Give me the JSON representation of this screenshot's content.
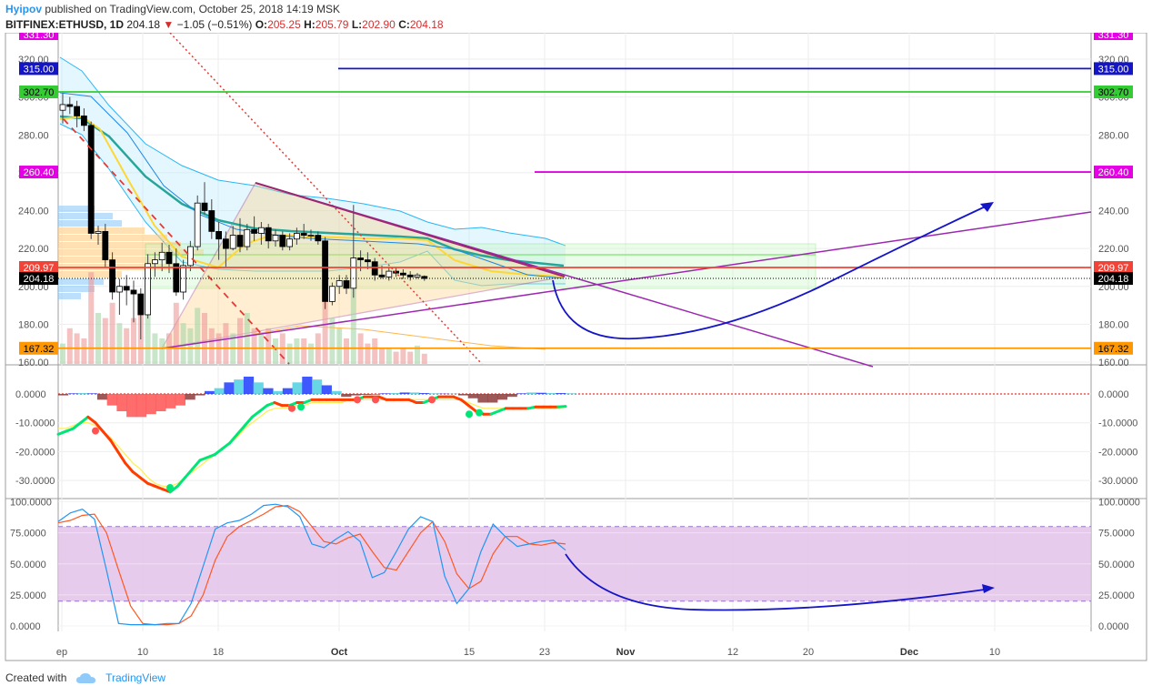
{
  "header": {
    "author": "Hyipov",
    "published_text": "published on TradingView.com, October 25, 2018 14:19 MSK",
    "symbol": "BITFINEX:ETHUSD, 1D",
    "last": "204.18",
    "change": "−1.05 (−0.51%)",
    "open_label": "O:",
    "open": "205.25",
    "high_label": "H:",
    "high": "205.79",
    "low_label": "L:",
    "low": "202.90",
    "close_label": "C:",
    "close": "204.18"
  },
  "footer": {
    "created_with": "Created with",
    "brand": "TradingView"
  },
  "colors": {
    "up": "#ffffff",
    "down": "#000000",
    "accent": "#2196f3",
    "level_blue": "#1515c8",
    "level_green": "#33cc33",
    "level_red": "#f44336",
    "level_magenta": "#e600e6",
    "level_orange": "#ff9800",
    "purple": "#9c27b0",
    "stoch_band": "#e1bee7"
  },
  "chart_data": [
    {
      "type": "candlestick",
      "title": "",
      "x_ticks": [
        "ep",
        "10",
        "18",
        "Oct",
        "15",
        "23",
        "Nov",
        "12",
        "20",
        "Dec",
        "10"
      ],
      "y_ticks": [
        "160.00",
        "180.00",
        "200.00",
        "220.00",
        "240.00",
        "260.00",
        "280.00",
        "300.00",
        "320.00"
      ],
      "ylim": [
        160,
        330
      ],
      "candles": [
        {
          "o": 293,
          "h": 302,
          "l": 286,
          "c": 296
        },
        {
          "o": 296,
          "h": 300,
          "l": 291,
          "c": 295
        },
        {
          "o": 295,
          "h": 298,
          "l": 284,
          "c": 290
        },
        {
          "o": 290,
          "h": 294,
          "l": 282,
          "c": 285
        },
        {
          "o": 285,
          "h": 287,
          "l": 225,
          "c": 228
        },
        {
          "o": 228,
          "h": 232,
          "l": 222,
          "c": 229
        },
        {
          "o": 229,
          "h": 233,
          "l": 210,
          "c": 214
        },
        {
          "o": 214,
          "h": 218,
          "l": 193,
          "c": 197
        },
        {
          "o": 197,
          "h": 204,
          "l": 185,
          "c": 200
        },
        {
          "o": 200,
          "h": 206,
          "l": 190,
          "c": 198
        },
        {
          "o": 198,
          "h": 203,
          "l": 181,
          "c": 196
        },
        {
          "o": 196,
          "h": 199,
          "l": 172,
          "c": 185
        },
        {
          "o": 185,
          "h": 217,
          "l": 183,
          "c": 212
        },
        {
          "o": 212,
          "h": 218,
          "l": 205,
          "c": 214
        },
        {
          "o": 214,
          "h": 223,
          "l": 208,
          "c": 218
        },
        {
          "o": 218,
          "h": 222,
          "l": 207,
          "c": 212
        },
        {
          "o": 212,
          "h": 220,
          "l": 195,
          "c": 197
        },
        {
          "o": 197,
          "h": 214,
          "l": 193,
          "c": 211
        },
        {
          "o": 211,
          "h": 224,
          "l": 208,
          "c": 221
        },
        {
          "o": 221,
          "h": 248,
          "l": 219,
          "c": 244
        },
        {
          "o": 244,
          "h": 255,
          "l": 238,
          "c": 240
        },
        {
          "o": 240,
          "h": 246,
          "l": 225,
          "c": 229
        },
        {
          "o": 229,
          "h": 234,
          "l": 214,
          "c": 225
        },
        {
          "o": 225,
          "h": 229,
          "l": 210,
          "c": 220
        },
        {
          "o": 220,
          "h": 232,
          "l": 219,
          "c": 227
        },
        {
          "o": 227,
          "h": 236,
          "l": 218,
          "c": 221
        },
        {
          "o": 221,
          "h": 233,
          "l": 219,
          "c": 230
        },
        {
          "o": 230,
          "h": 237,
          "l": 224,
          "c": 228
        },
        {
          "o": 228,
          "h": 234,
          "l": 222,
          "c": 231
        },
        {
          "o": 231,
          "h": 233,
          "l": 220,
          "c": 224
        },
        {
          "o": 224,
          "h": 230,
          "l": 221,
          "c": 227
        },
        {
          "o": 227,
          "h": 229,
          "l": 219,
          "c": 221
        },
        {
          "o": 221,
          "h": 228,
          "l": 219,
          "c": 225
        },
        {
          "o": 225,
          "h": 231,
          "l": 222,
          "c": 228
        },
        {
          "o": 228,
          "h": 233,
          "l": 225,
          "c": 227
        },
        {
          "o": 227,
          "h": 230,
          "l": 224,
          "c": 227
        },
        {
          "o": 227,
          "h": 229,
          "l": 222,
          "c": 224
        },
        {
          "o": 224,
          "h": 226,
          "l": 188,
          "c": 192
        },
        {
          "o": 192,
          "h": 202,
          "l": 190,
          "c": 200
        },
        {
          "o": 200,
          "h": 206,
          "l": 196,
          "c": 203
        },
        {
          "o": 203,
          "h": 206,
          "l": 196,
          "c": 199
        },
        {
          "o": 199,
          "h": 243,
          "l": 194,
          "c": 215
        },
        {
          "o": 215,
          "h": 219,
          "l": 208,
          "c": 214
        },
        {
          "o": 214,
          "h": 218,
          "l": 209,
          "c": 213
        },
        {
          "o": 213,
          "h": 215,
          "l": 203,
          "c": 206
        },
        {
          "o": 206,
          "h": 211,
          "l": 204,
          "c": 205
        },
        {
          "o": 205,
          "h": 210,
          "l": 203,
          "c": 208
        },
        {
          "o": 208,
          "h": 210,
          "l": 205,
          "c": 207
        },
        {
          "o": 207,
          "h": 209,
          "l": 204,
          "c": 206
        },
        {
          "o": 206,
          "h": 208,
          "l": 203,
          "c": 205
        },
        {
          "o": 205,
          "h": 207,
          "l": 204,
          "c": 206
        },
        {
          "o": 205.25,
          "h": 205.79,
          "l": 202.9,
          "c": 204.18
        }
      ],
      "volume_rel": [
        0.2,
        0.35,
        0.3,
        0.25,
        0.9,
        0.5,
        0.45,
        0.6,
        0.4,
        0.35,
        0.45,
        0.5,
        0.7,
        0.3,
        0.25,
        0.3,
        0.6,
        0.4,
        0.35,
        0.55,
        0.5,
        0.35,
        0.3,
        0.4,
        0.3,
        0.45,
        0.5,
        0.35,
        0.3,
        0.35,
        0.25,
        0.3,
        0.2,
        0.25,
        0.25,
        0.2,
        0.3,
        0.8,
        0.45,
        0.35,
        0.25,
        1.0,
        0.3,
        0.2,
        0.25,
        0.15,
        0.15,
        0.12,
        0.15,
        0.12,
        0.18,
        0.1
      ],
      "levels": [
        {
          "value": 315.0,
          "label": "315.00",
          "color": "#1515c8"
        },
        {
          "value": 302.7,
          "label": "302.70",
          "color": "#33cc33"
        },
        {
          "value": 260.4,
          "label": "260.40",
          "color": "#e600e6"
        },
        {
          "value": 209.97,
          "label": "209.97",
          "color": "#f44336"
        },
        {
          "value": 204.18,
          "label": "204.18",
          "color": "#000000"
        },
        {
          "value": 167.32,
          "label": "167.32",
          "color": "#ff9800"
        }
      ],
      "partial_labels": [
        "331.30"
      ]
    },
    {
      "type": "line",
      "title": "",
      "y_ticks": [
        "0.0000",
        "-10.0000",
        "-20.0000",
        "-30.0000"
      ],
      "ylim": [
        -35,
        5
      ],
      "fast": [
        -14,
        -13,
        -12,
        -10,
        -8,
        -10,
        -13,
        -16,
        -20,
        -24,
        -27,
        -29,
        -31,
        -32,
        -33,
        -34,
        -32,
        -29,
        -26,
        -23,
        -22,
        -21,
        -19,
        -17,
        -14,
        -11,
        -8,
        -6,
        -4,
        -3,
        -4,
        -4,
        -3,
        -3,
        -2,
        -2,
        -2,
        -2,
        -2,
        -2,
        -2,
        -1,
        -1,
        -1,
        -2,
        -2,
        -2,
        -2,
        -3,
        -3,
        -2,
        -1,
        -1,
        -1,
        -2,
        -4,
        -6,
        -7,
        -7,
        -6,
        -5,
        -5,
        -5,
        -5,
        -4.5,
        -4.5,
        -4.5,
        -4.5,
        -4.3
      ],
      "slow": [
        -12,
        -12,
        -11,
        -10,
        -10,
        -11,
        -13,
        -15,
        -18,
        -21,
        -24,
        -26,
        -29,
        -31,
        -32,
        -32,
        -31,
        -29,
        -27,
        -25,
        -23,
        -21,
        -19,
        -17,
        -15,
        -12,
        -10,
        -8,
        -6,
        -5,
        -5,
        -5,
        -4,
        -4,
        -3,
        -3,
        -3,
        -3,
        -3,
        -2,
        -2,
        -2,
        -2,
        -2,
        -2,
        -2,
        -2,
        -2,
        -2,
        -2,
        -2,
        -2,
        -2,
        -2,
        -2,
        -3,
        -4,
        -5,
        -5,
        -5,
        -5,
        -5,
        -5,
        -5,
        -5,
        -5,
        -5,
        -5,
        -4.5
      ],
      "hist": [
        -0.5,
        0.2,
        0.3,
        0.2,
        -2,
        -4,
        -6,
        -8,
        -8,
        -7,
        -6,
        -5,
        -4,
        -2,
        -0.5,
        1,
        2,
        4,
        5,
        6,
        4,
        2,
        1,
        2,
        4,
        6,
        5,
        3,
        1,
        -1,
        -0.5,
        -0.3,
        -0.2,
        0.2,
        0.3,
        0.5,
        0.5,
        0.3,
        0.2,
        0.1,
        0.1,
        -0.5,
        -1.5,
        -3,
        -3,
        -2,
        -1,
        0.2,
        0.5,
        0.4,
        0.3,
        0.3,
        0.2
      ]
    },
    {
      "type": "line",
      "title": "",
      "y_ticks": [
        "100.0000",
        "75.0000",
        "50.0000",
        "25.0000",
        "0.0000"
      ],
      "ylim": [
        -5,
        105
      ],
      "band": [
        20,
        80
      ],
      "k": [
        84,
        91,
        94,
        86,
        45,
        2,
        1,
        1,
        1,
        2,
        2,
        18,
        48,
        78,
        83,
        85,
        90,
        97,
        98,
        96,
        88,
        66,
        63,
        70,
        76,
        68,
        39,
        43,
        60,
        78,
        88,
        84,
        40,
        18,
        30,
        60,
        82,
        72,
        64,
        66,
        68,
        69,
        61
      ],
      "d": [
        83,
        85,
        89,
        90,
        75,
        45,
        16,
        2,
        1,
        1,
        2,
        8,
        25,
        53,
        72,
        80,
        85,
        90,
        96,
        97,
        92,
        80,
        68,
        66,
        71,
        74,
        60,
        47,
        45,
        60,
        75,
        84,
        68,
        42,
        30,
        36,
        58,
        72,
        72,
        66,
        65,
        67,
        66
      ]
    }
  ]
}
